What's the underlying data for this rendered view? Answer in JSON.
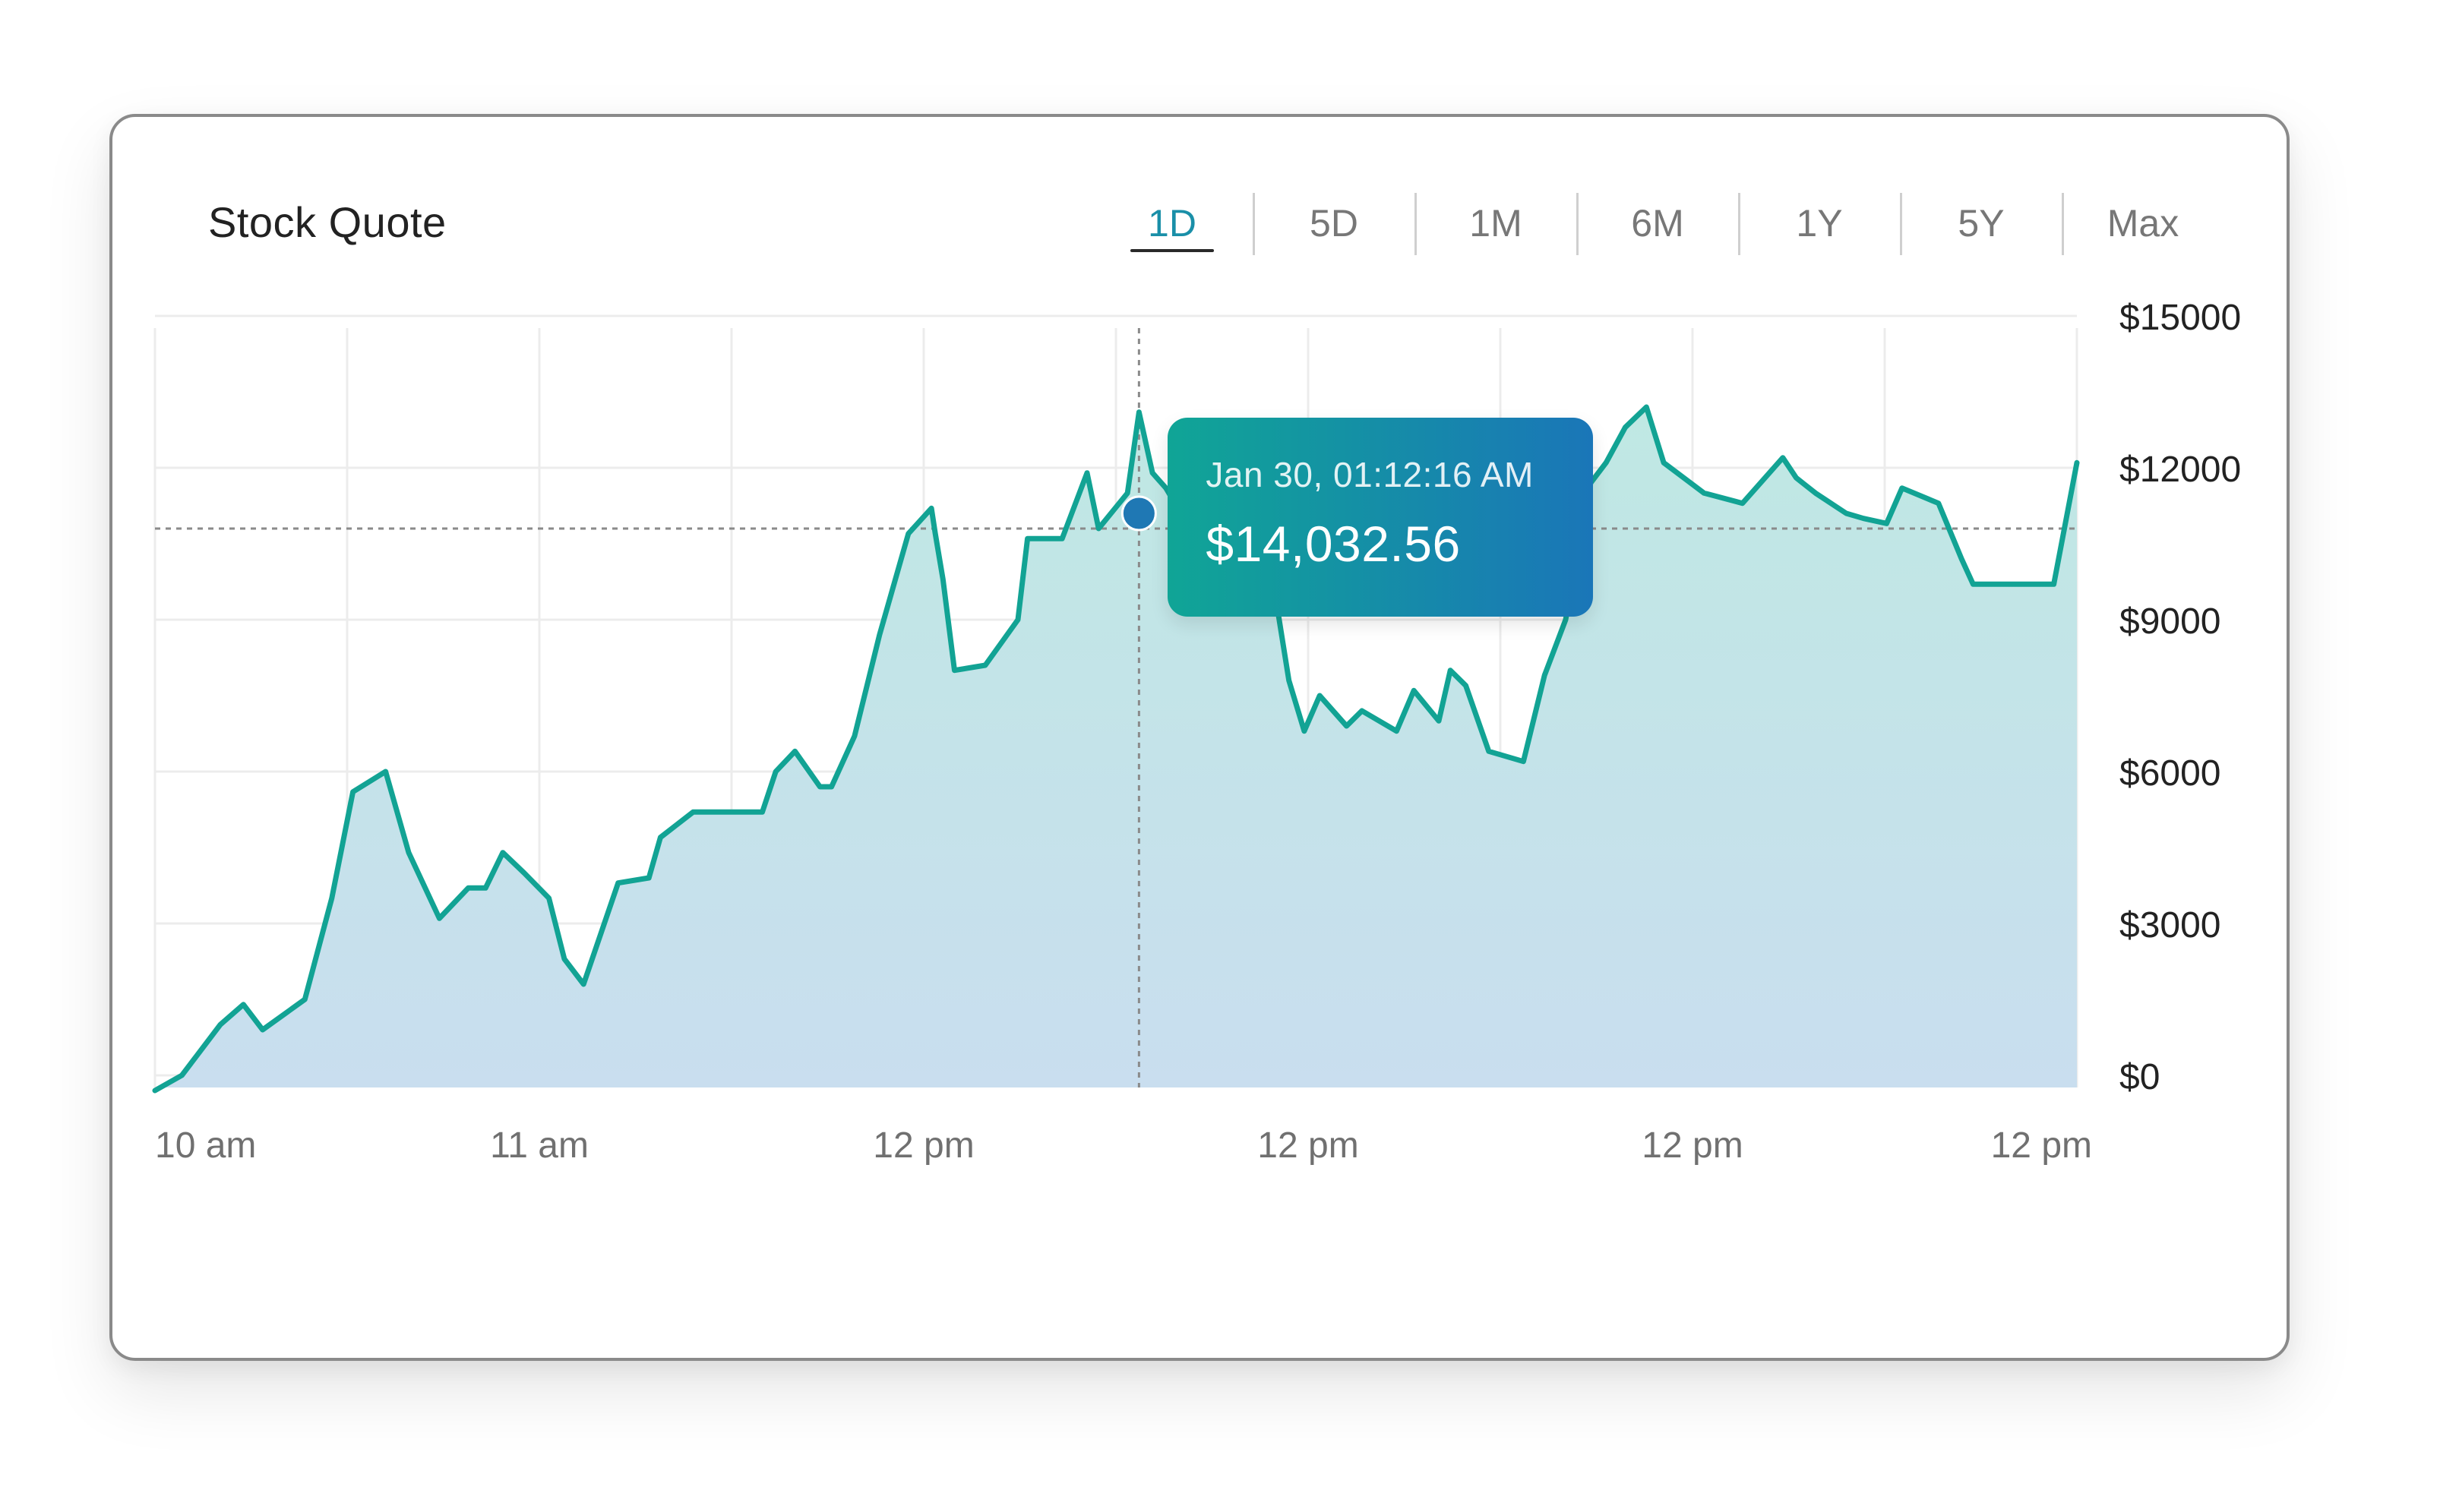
{
  "card": {
    "title": "Stock Quote"
  },
  "ranges": [
    {
      "label": "1D",
      "active": true
    },
    {
      "label": "5D",
      "active": false
    },
    {
      "label": "1M",
      "active": false
    },
    {
      "label": "6M",
      "active": false
    },
    {
      "label": "1Y",
      "active": false
    },
    {
      "label": "5Y",
      "active": false
    },
    {
      "label": "Max",
      "active": false
    }
  ],
  "tooltip": {
    "date": "Jan 30, 01:12:16 AM",
    "value": "$14,032.56"
  },
  "colors": {
    "line": "#12a394",
    "area_top": "#bfe8e3",
    "area_bottom": "#c9deef",
    "marker": "#1f78b4",
    "active_tab": "#1a8fa8"
  },
  "chart_data": {
    "type": "area",
    "ylim": [
      0,
      15000
    ],
    "yticks": [
      0,
      3000,
      6000,
      9000,
      12000,
      15000
    ],
    "ytick_labels": [
      "$0",
      "$3000",
      "$6000",
      "$9000",
      "$12000",
      "$15000"
    ],
    "xtick_labels": [
      "10 am",
      "11 am",
      "12 pm",
      "12 pm",
      "12 pm",
      "12 pm"
    ],
    "grid": true,
    "crosshair": {
      "x": 51.2,
      "y": 10800
    },
    "series": [
      {
        "x": [
          0,
          1.4,
          3.4,
          4.6,
          5.6,
          7.8,
          9.2,
          10.3,
          12.0,
          13.2,
          14.8,
          16.3,
          17.2,
          18.1,
          19.2,
          20.5,
          21.3,
          22.3,
          24.1,
          25.7,
          26.3,
          28.0,
          29.2,
          31.6,
          32.3,
          33.3,
          34.6,
          35.2,
          36.4,
          37.7,
          39.2,
          40.4,
          40.6,
          41.0,
          41.6,
          43.2,
          44.9,
          45.4,
          47.2,
          48.5,
          49.1,
          50.6,
          51.2,
          51.9,
          52.6,
          53.7,
          55.0,
          56.5,
          57.4,
          59.0,
          59.8,
          60.6,
          62.0,
          62.8,
          64.6,
          65.5,
          66.8,
          67.4,
          68.2,
          69.4,
          71.2,
          72.3,
          73.4,
          74.7,
          75.5,
          76.5,
          77.6,
          78.5,
          80.6,
          82.6,
          84.7,
          85.4,
          86.4,
          88.0,
          88.9,
          90.1,
          90.9,
          92.8,
          94.0,
          94.6,
          95.8,
          98.8,
          100.0
        ],
        "y": [
          -300,
          0,
          1000,
          1400,
          900,
          1500,
          3500,
          5600,
          6000,
          4400,
          3100,
          3700,
          3700,
          4400,
          4000,
          3500,
          2300,
          1800,
          3800,
          3900,
          4700,
          5200,
          5200,
          5200,
          6000,
          6400,
          5700,
          5700,
          6700,
          8700,
          10700,
          11200,
          10700,
          9800,
          8000,
          8100,
          9000,
          10600,
          10600,
          11900,
          10800,
          11500,
          13100,
          11900,
          11600,
          10900,
          11900,
          12300,
          11600,
          7800,
          6800,
          7500,
          6900,
          7200,
          6800,
          7600,
          7000,
          8000,
          7700,
          6400,
          6200,
          7900,
          9000,
          11700,
          12100,
          12800,
          13200,
          12100,
          11500,
          11300,
          12200,
          11800,
          11500,
          11100,
          11000,
          10900,
          11600,
          11300,
          10200,
          9700,
          9700,
          9700,
          12100
        ]
      }
    ]
  }
}
